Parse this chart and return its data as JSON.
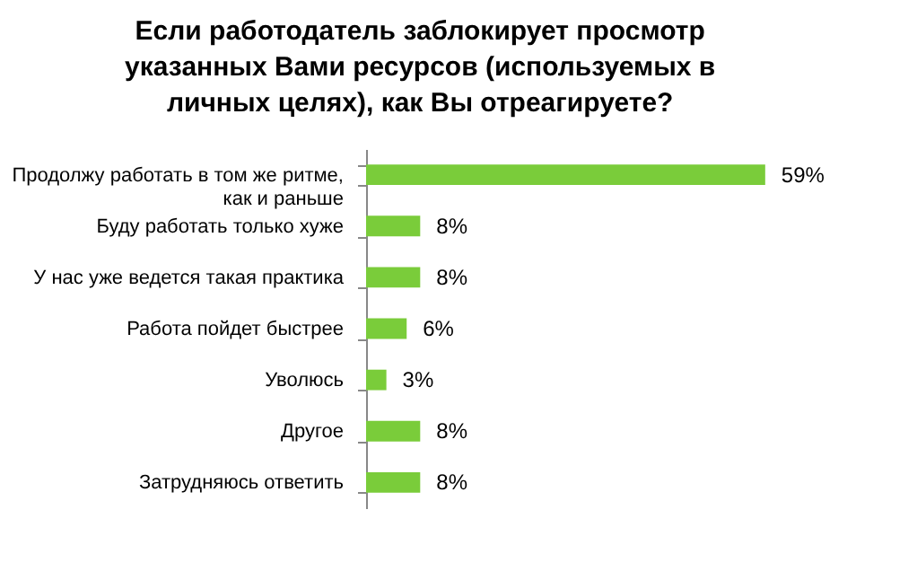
{
  "chart_data": {
    "type": "bar",
    "orientation": "horizontal",
    "title": "Если работодатель заблокирует просмотр указанных Вами ресурсов (используемых в личных целях), как Вы отреагируете?",
    "categories": [
      "Продолжу работать в том же ритме, как и раньше",
      "Буду работать только хуже",
      "У нас уже ведется такая практика",
      "Работа пойдет быстрее",
      "Уволюсь",
      "Другое",
      "Затрудняюсь ответить"
    ],
    "values": [
      59,
      8,
      8,
      6,
      3,
      8,
      8
    ],
    "value_labels": [
      "59%",
      "8%",
      "8%",
      "6%",
      "3%",
      "8%",
      "8%"
    ],
    "color": "#7acc3a"
  }
}
